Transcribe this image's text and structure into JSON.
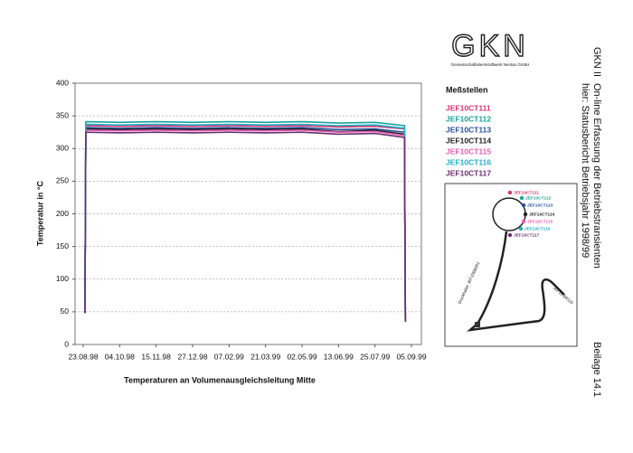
{
  "header": {
    "logo": "GKN",
    "company": "Gemeinschaftskernkraftwerk Neckar GmbH",
    "plant": "GKN II",
    "subject": "On-line Erfassung der Betriebstransienten",
    "status": "hier: Statusbericht Betriebsjahr 1998/99",
    "appendix": "Beilage 14.1"
  },
  "legend_title": "Meßstellen",
  "diagram": {
    "labels": [
      "JEF10CT111",
      "JEF10CT112",
      "JEF10CT113",
      "JEF10CT114",
      "JEF10CT115",
      "JEF10CT116",
      "JEF10CT117"
    ],
    "pipe_labels": [
      "Druckhalter JEF10BB001",
      "JEF10 BR110"
    ]
  },
  "chart_data": {
    "type": "line",
    "x_label": "Temperaturen an Volumenausgleichsleitung Mitte",
    "y_label": "Temperatur in °C",
    "x": [
      "25.08.98",
      "26.08.98",
      "04.10.98",
      "15.11.98",
      "27.12.98",
      "07.02.99",
      "21.03.99",
      "02.05.99",
      "13.06.99",
      "25.07.99",
      "28.08.99",
      "29.08.99"
    ],
    "xlim": [
      "23.08.98",
      "05.09.99"
    ],
    "xticks": [
      "23.08.98",
      "04.10.98",
      "15.11.98",
      "27.12.98",
      "07.02.99",
      "21.03.99",
      "02.05.99",
      "13.06.99",
      "25.07.99",
      "05.09.99"
    ],
    "ylim": [
      0,
      400
    ],
    "yticks": [
      0,
      50,
      100,
      150,
      200,
      250,
      300,
      350,
      400
    ],
    "grid": true,
    "series": [
      {
        "name": "JEF10CT111",
        "color": "#d6336c",
        "values": [
          48,
          335,
          334,
          335,
          334,
          335,
          334,
          335,
          333,
          334,
          330,
          35
        ]
      },
      {
        "name": "JEF10CT112",
        "color": "#1aa39a",
        "values": [
          48,
          341,
          340,
          341,
          340,
          341,
          340,
          341,
          339,
          340,
          335,
          35
        ]
      },
      {
        "name": "JEF10CT113",
        "color": "#2a4fa0",
        "values": [
          48,
          332,
          331,
          332,
          331,
          332,
          331,
          332,
          329,
          330,
          325,
          35
        ]
      },
      {
        "name": "JEF10CT114",
        "color": "#222222",
        "values": [
          48,
          330,
          329,
          330,
          329,
          330,
          329,
          330,
          326,
          328,
          322,
          35
        ]
      },
      {
        "name": "JEF10CT115",
        "color": "#e85bb5",
        "values": [
          48,
          328,
          327,
          328,
          327,
          328,
          327,
          328,
          325,
          326,
          320,
          35
        ]
      },
      {
        "name": "JEF10CT116",
        "color": "#20b0c8",
        "values": [
          48,
          337,
          336,
          337,
          336,
          337,
          336,
          337,
          335,
          336,
          331,
          35
        ]
      },
      {
        "name": "JEF10CT117",
        "color": "#6a2f6f",
        "values": [
          48,
          325,
          324,
          325,
          324,
          325,
          324,
          325,
          322,
          323,
          317,
          35
        ]
      }
    ]
  }
}
